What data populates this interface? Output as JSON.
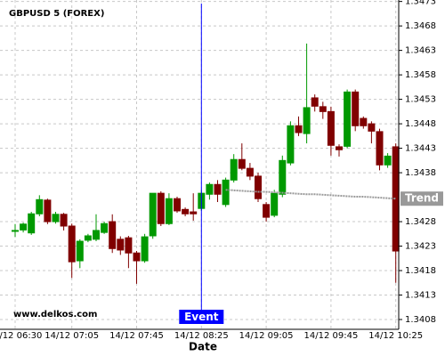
{
  "chart_data": {
    "type": "candlestick",
    "title": "GBPUSD 5 (FOREX)",
    "watermark": "www.delkos.com",
    "x_label": "Date",
    "categories": [
      "14/12 06:30",
      null,
      null,
      null,
      null,
      null,
      null,
      "14/12 07:05",
      null,
      null,
      null,
      null,
      null,
      null,
      null,
      "14/12 07:45",
      null,
      null,
      null,
      null,
      null,
      null,
      null,
      "14/12 08:25",
      null,
      null,
      null,
      null,
      null,
      null,
      null,
      "14/12 09:05",
      null,
      null,
      null,
      null,
      null,
      null,
      null,
      "14/12 09:45",
      null,
      null,
      null,
      null,
      null,
      null,
      null,
      "14/12 10:25"
    ],
    "open": [
      1.34262,
      1.34263,
      1.34257,
      1.34296,
      1.34324,
      1.3428,
      1.34295,
      1.34271,
      1.342,
      1.34242,
      1.34244,
      1.34258,
      1.3428,
      1.34244,
      1.34247,
      1.34216,
      1.342,
      1.34251,
      1.34338,
      1.34276,
      1.34327,
      1.34305,
      1.343,
      1.34307,
      1.34336,
      1.34356,
      1.34315,
      1.34365,
      1.34407,
      1.34389,
      1.34373,
      1.34315,
      1.34293,
      1.34336,
      1.344,
      1.34476,
      1.3446,
      1.34533,
      1.34515,
      1.34505,
      1.34433,
      1.34434,
      1.34545,
      1.34491,
      1.3448,
      1.34464,
      1.34396,
      1.34433
    ],
    "high": [
      1.34275,
      1.34278,
      1.343,
      1.34334,
      1.34327,
      1.343,
      1.34298,
      1.34276,
      1.34244,
      1.34255,
      1.34295,
      1.3428,
      1.34295,
      1.3425,
      1.34251,
      1.3422,
      1.34255,
      1.34338,
      1.34342,
      1.34338,
      1.34331,
      1.34309,
      1.34338,
      1.34345,
      1.3436,
      1.34365,
      1.3437,
      1.34418,
      1.3444,
      1.344,
      1.3438,
      1.3432,
      1.34345,
      1.34415,
      1.34485,
      1.34495,
      1.34644,
      1.3454,
      1.34525,
      1.34515,
      1.34438,
      1.3455,
      1.3455,
      1.34495,
      1.34485,
      1.3447,
      1.3442,
      1.3444
    ],
    "low": [
      1.34249,
      1.34258,
      1.34253,
      1.34291,
      1.34275,
      1.34276,
      1.34262,
      1.34165,
      1.34185,
      1.34238,
      1.3424,
      1.34255,
      1.34216,
      1.34212,
      1.34185,
      1.34153,
      1.34196,
      1.34245,
      1.34271,
      1.34273,
      1.34298,
      1.34291,
      1.34282,
      1.34302,
      1.34325,
      1.3432,
      1.3431,
      1.3436,
      1.34385,
      1.34365,
      1.3432,
      1.3428,
      1.34289,
      1.3433,
      1.34395,
      1.34455,
      1.3444,
      1.34505,
      1.3449,
      1.34415,
      1.34413,
      1.3443,
      1.34465,
      1.3447,
      1.3444,
      1.34385,
      1.3439,
      1.34155
    ],
    "close": [
      1.34262,
      1.34275,
      1.34296,
      1.34325,
      1.3428,
      1.34295,
      1.34271,
      1.34198,
      1.3424,
      1.34251,
      1.34262,
      1.34276,
      1.34225,
      1.34222,
      1.34216,
      1.342,
      1.34249,
      1.34338,
      1.34276,
      1.34327,
      1.34302,
      1.34296,
      1.34296,
      1.34338,
      1.34356,
      1.34336,
      1.34365,
      1.34407,
      1.34389,
      1.34373,
      1.34327,
      1.34289,
      1.34338,
      1.34405,
      1.34476,
      1.34462,
      1.34513,
      1.34516,
      1.34505,
      1.34436,
      1.34427,
      1.34545,
      1.34476,
      1.34476,
      1.34465,
      1.34396,
      1.34414,
      1.3422
    ],
    "up_color": "#009900",
    "down_color": "#800000",
    "trend": {
      "name": "Trend",
      "color": "#999999",
      "values": [
        null,
        null,
        null,
        null,
        null,
        null,
        null,
        null,
        null,
        null,
        null,
        null,
        null,
        null,
        null,
        null,
        null,
        null,
        null,
        null,
        null,
        null,
        null,
        null,
        null,
        null,
        1.34345,
        1.34344,
        1.34343,
        1.34342,
        1.34341,
        1.34341,
        1.3434,
        1.34339,
        1.34338,
        1.34337,
        1.34336,
        1.34336,
        1.34335,
        1.34334,
        1.34333,
        1.34332,
        1.34331,
        1.34331,
        1.3433,
        1.34329,
        1.34328,
        1.34327
      ]
    },
    "event": {
      "label": "Event",
      "at": "14/12 08:25",
      "color": "#0000ff"
    },
    "ylim": [
      1.3406,
      1.34733
    ],
    "yticks": [
      1.3408,
      1.3413,
      1.3418,
      1.3423,
      1.3428,
      1.3438,
      1.3443,
      1.3448,
      1.3453,
      1.3458,
      1.3463,
      1.3468,
      1.3473
    ],
    "grid": true
  }
}
